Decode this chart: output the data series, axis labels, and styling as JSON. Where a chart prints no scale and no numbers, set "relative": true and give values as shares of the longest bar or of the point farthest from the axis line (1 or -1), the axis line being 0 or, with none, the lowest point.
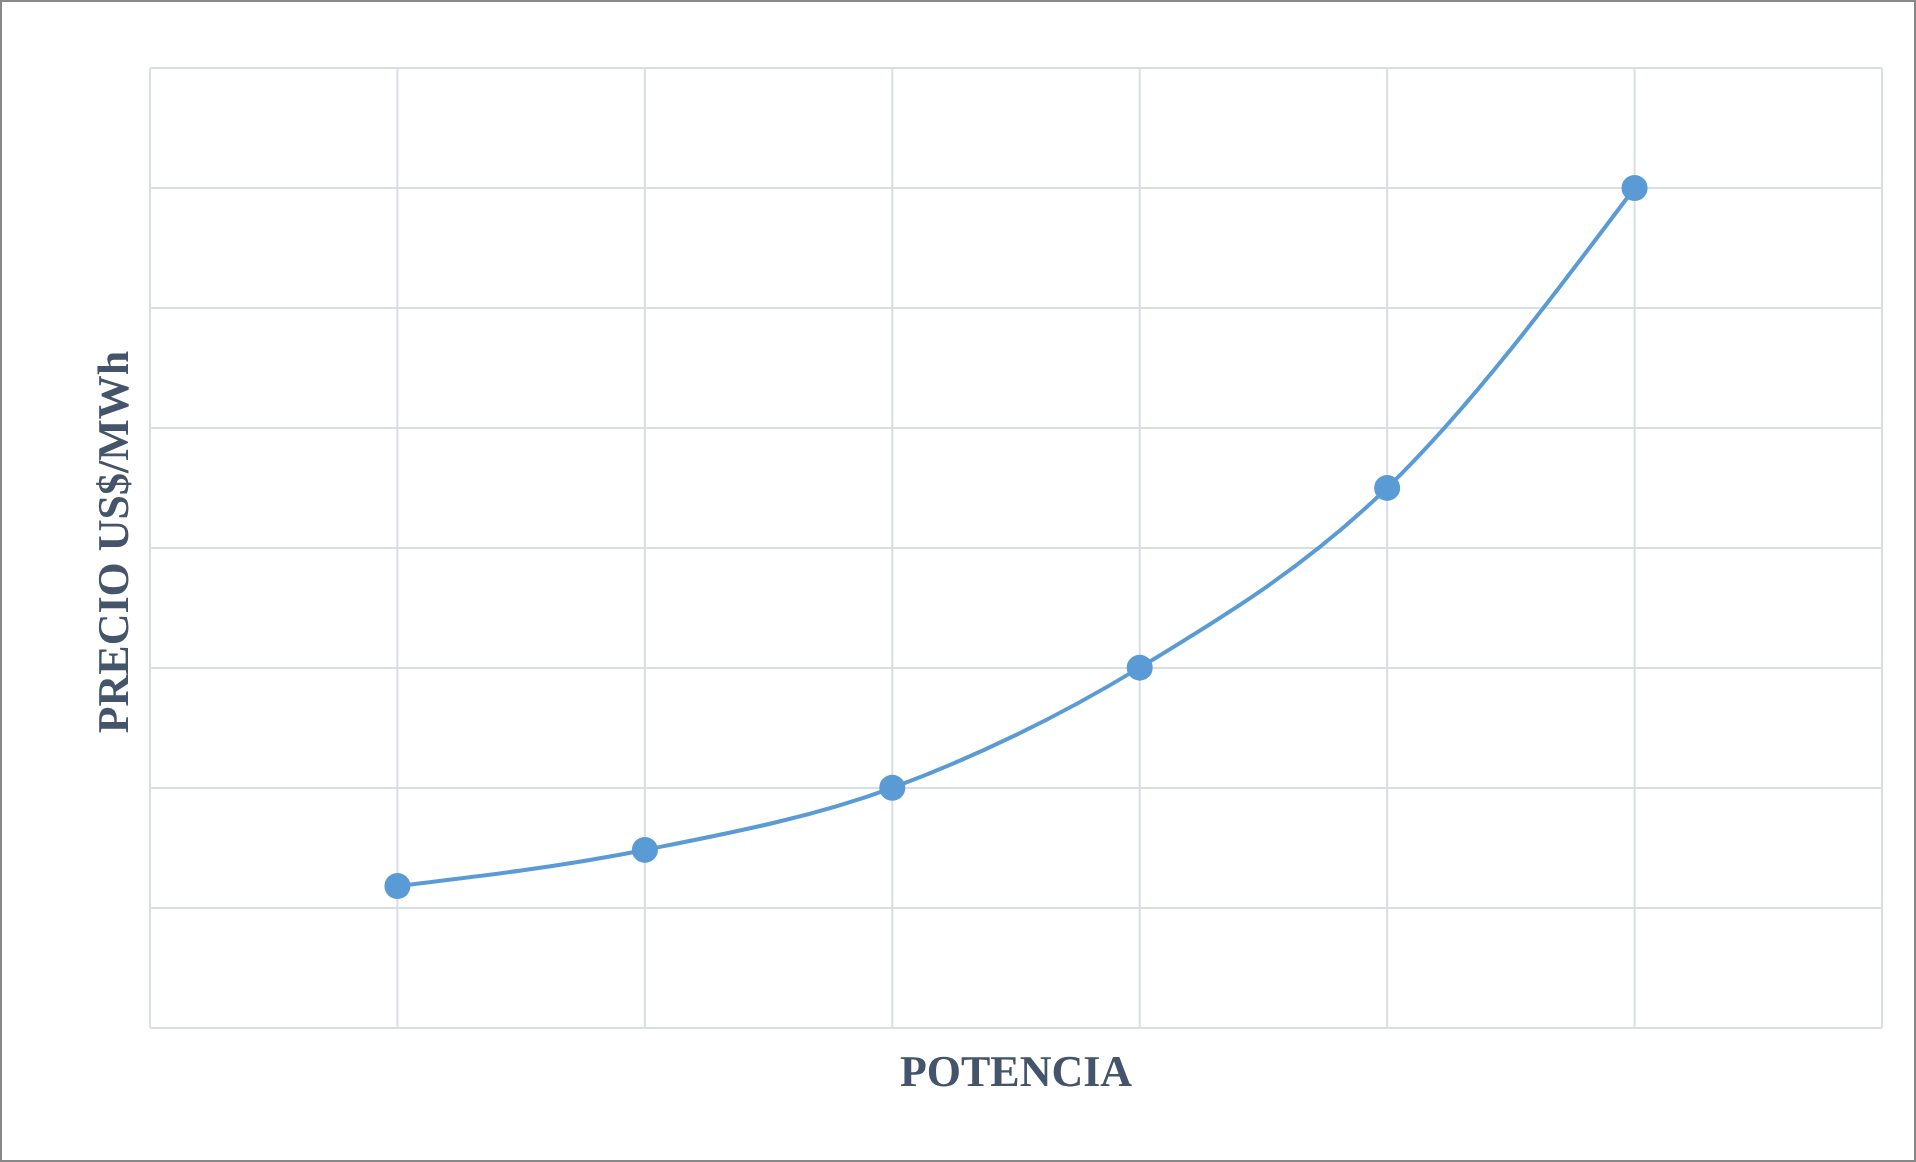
{
  "chart_data": {
    "type": "line",
    "xlabel": "POTENCIA",
    "ylabel": "PRECIO US$/MWh",
    "categories": [
      null,
      null,
      null,
      null,
      null,
      null
    ],
    "series": [
      {
        "color": "#5b9bd5",
        "values": [
          0.169,
          0.212,
          0.286,
          0.429,
          0.643,
          1
        ]
      }
    ],
    "relative": true,
    "grid": true,
    "marker": "circle",
    "line_style": "solid"
  }
}
